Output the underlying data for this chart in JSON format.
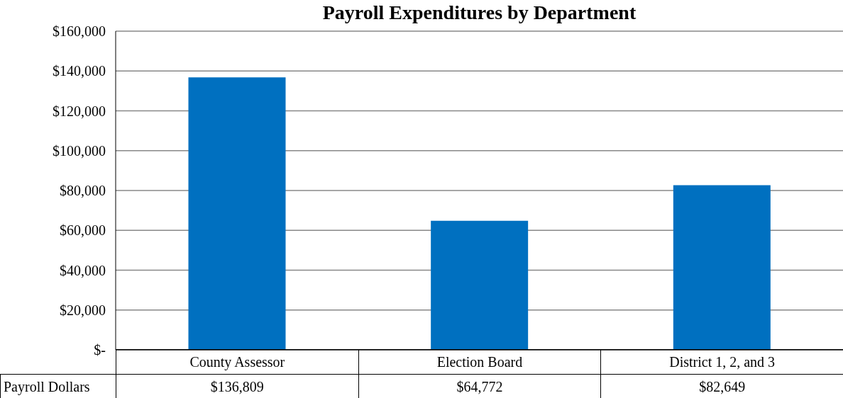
{
  "chart_data": {
    "type": "bar",
    "title": "Payroll Expenditures by Department",
    "categories": [
      "County Assessor",
      "Election Board",
      "District 1, 2, and 3"
    ],
    "series": [
      {
        "name": "Payroll Dollars",
        "color": "#0070c0",
        "values": [
          136809,
          64772,
          82649
        ],
        "value_labels": [
          "$136,809",
          "$64,772",
          "$82,649"
        ]
      }
    ],
    "ylim": [
      0,
      160000
    ],
    "yticks": [
      {
        "value": 0,
        "label": "$-"
      },
      {
        "value": 20000,
        "label": "$20,000"
      },
      {
        "value": 40000,
        "label": "$40,000"
      },
      {
        "value": 60000,
        "label": "$60,000"
      },
      {
        "value": 80000,
        "label": "$80,000"
      },
      {
        "value": 100000,
        "label": "$100,000"
      },
      {
        "value": 120000,
        "label": "$120,000"
      },
      {
        "value": 140000,
        "label": "$140,000"
      },
      {
        "value": 160000,
        "label": "$160,000"
      }
    ],
    "grid": "y",
    "legend": false
  }
}
